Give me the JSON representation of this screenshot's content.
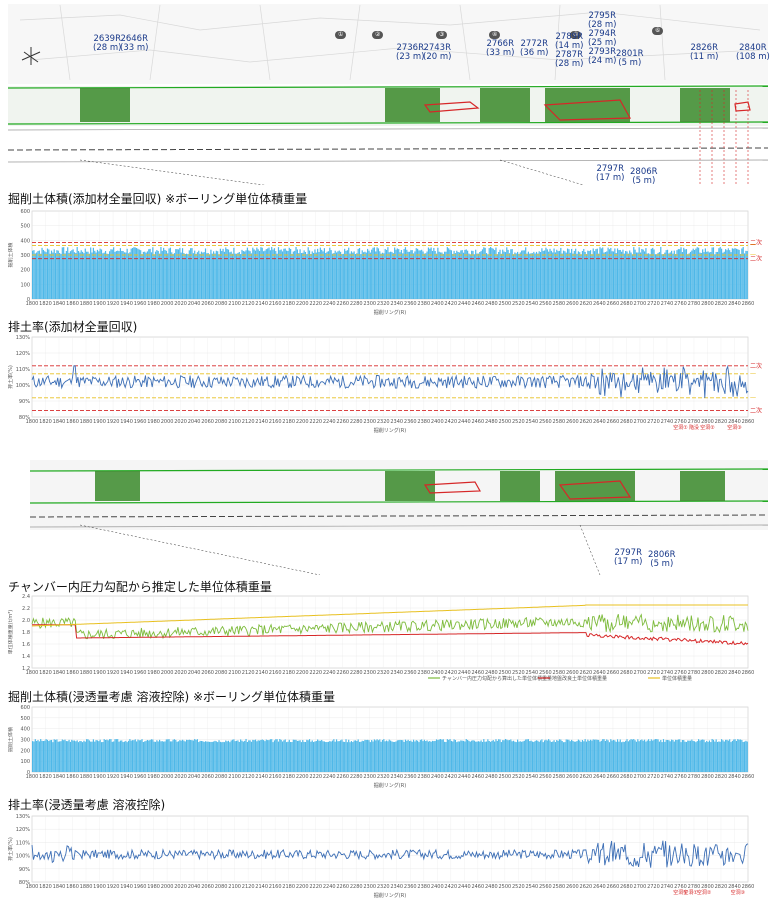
{
  "labels_top": [
    "2639R\n(28 m)",
    "2646R\n(33 m)",
    "2736R\n(23 m)",
    "2743R\n(20 m)",
    "2766R\n(33 m)",
    "2772R\n(36 m)",
    "2789R\n(14 m)\n2787R\n(28 m)",
    "2795R\n(28 m)\n2794R\n(25 m)\n2793R\n(24 m)",
    "2801R\n(5 m)",
    "2826R\n(11 m)",
    "2840R\n(108 m)"
  ],
  "labels_bottom_1": [
    "2797R\n(17 m)",
    "2806R\n(5 m)"
  ],
  "labels_bottom_2": [
    "2797R\n(17 m)",
    "2806R\n(5 m)"
  ],
  "chart_data": [
    {
      "type": "bar",
      "title": "掘削土体積(添加材全量回収) ※ボーリング単位体積重量",
      "xlabel": "掘削リング(R)",
      "ylabel": "掘削土体積",
      "xlim": [
        1800,
        2860
      ],
      "ylim": [
        0,
        600
      ],
      "mean_value": 330,
      "lines": [
        {
          "name": "二次管理値上限",
          "value": 385,
          "color": "#d62728"
        },
        {
          "name": "一次管理値上限",
          "value": 365,
          "color": "#e8c020"
        },
        {
          "name": "一次管理値下限",
          "value": 300,
          "color": "#e8c020"
        },
        {
          "name": "二次管理値下限",
          "value": 275,
          "color": "#d62728"
        }
      ],
      "side_labels": [
        "二次",
        "一",
        "一",
        "二次"
      ]
    },
    {
      "type": "line",
      "title": "排土率(添加材全量回収)",
      "xlabel": "掘削リング(R)",
      "ylabel": "排土率(%)",
      "xlim": [
        1800,
        2860
      ],
      "ylim": [
        80,
        130
      ],
      "yticks": [
        "80%",
        "90%",
        "100%",
        "110%",
        "120%",
        "130%"
      ],
      "mean_value": 102,
      "lines": [
        {
          "name": "二次管理値上限",
          "value": 112,
          "color": "#d62728"
        },
        {
          "name": "一次管理値上限",
          "value": 107,
          "color": "#e8c020"
        },
        {
          "name": "一次管理値下限",
          "value": 92,
          "color": "#e8c020"
        },
        {
          "name": "二次管理値下限",
          "value": 84,
          "color": "#d62728"
        }
      ],
      "side_labels": [
        "二次",
        "一",
        "一",
        "二次"
      ],
      "markers": [
        "空洞①",
        "陥没",
        "空洞②",
        "空洞③"
      ]
    },
    {
      "type": "line",
      "title": "チャンバー内圧力勾配から推定した単位体積重量",
      "xlabel": "",
      "ylabel": "単位体積重量(t/m³)",
      "xlim": [
        1800,
        2860
      ],
      "ylim": [
        1.2,
        2.4
      ],
      "yticks": [
        "1.2",
        "1.4",
        "1.6",
        "1.8",
        "2.0",
        "2.2",
        "2.4"
      ],
      "series": [
        {
          "name": "チャンバー内圧力勾配から算出した単位体積重量",
          "color": "#7dbb3c"
        },
        {
          "name": "地盤改良土単位体積重量",
          "color": "#d62728"
        },
        {
          "name": "単位体積重量",
          "color": "#e8c020"
        }
      ]
    },
    {
      "type": "bar",
      "title": "掘削土体積(浸透量考慮 溶液控除) ※ボーリング単位体積重量",
      "xlabel": "掘削リング(R)",
      "ylabel": "掘削土体積",
      "xlim": [
        1800,
        2860
      ],
      "ylim": [
        0,
        600
      ],
      "mean_value": 290
    },
    {
      "type": "line",
      "title": "排土率(浸透量考慮 溶液控除)",
      "xlabel": "掘削リング(R)",
      "ylabel": "排土率(%)",
      "xlim": [
        1800,
        2860
      ],
      "ylim": [
        80,
        130
      ],
      "yticks": [
        "80%",
        "90%",
        "100%",
        "110%",
        "120%",
        "130%"
      ],
      "mean_value": 101,
      "markers": [
        "空洞①",
        "空洞①",
        "空洞②",
        "空洞③"
      ]
    }
  ]
}
